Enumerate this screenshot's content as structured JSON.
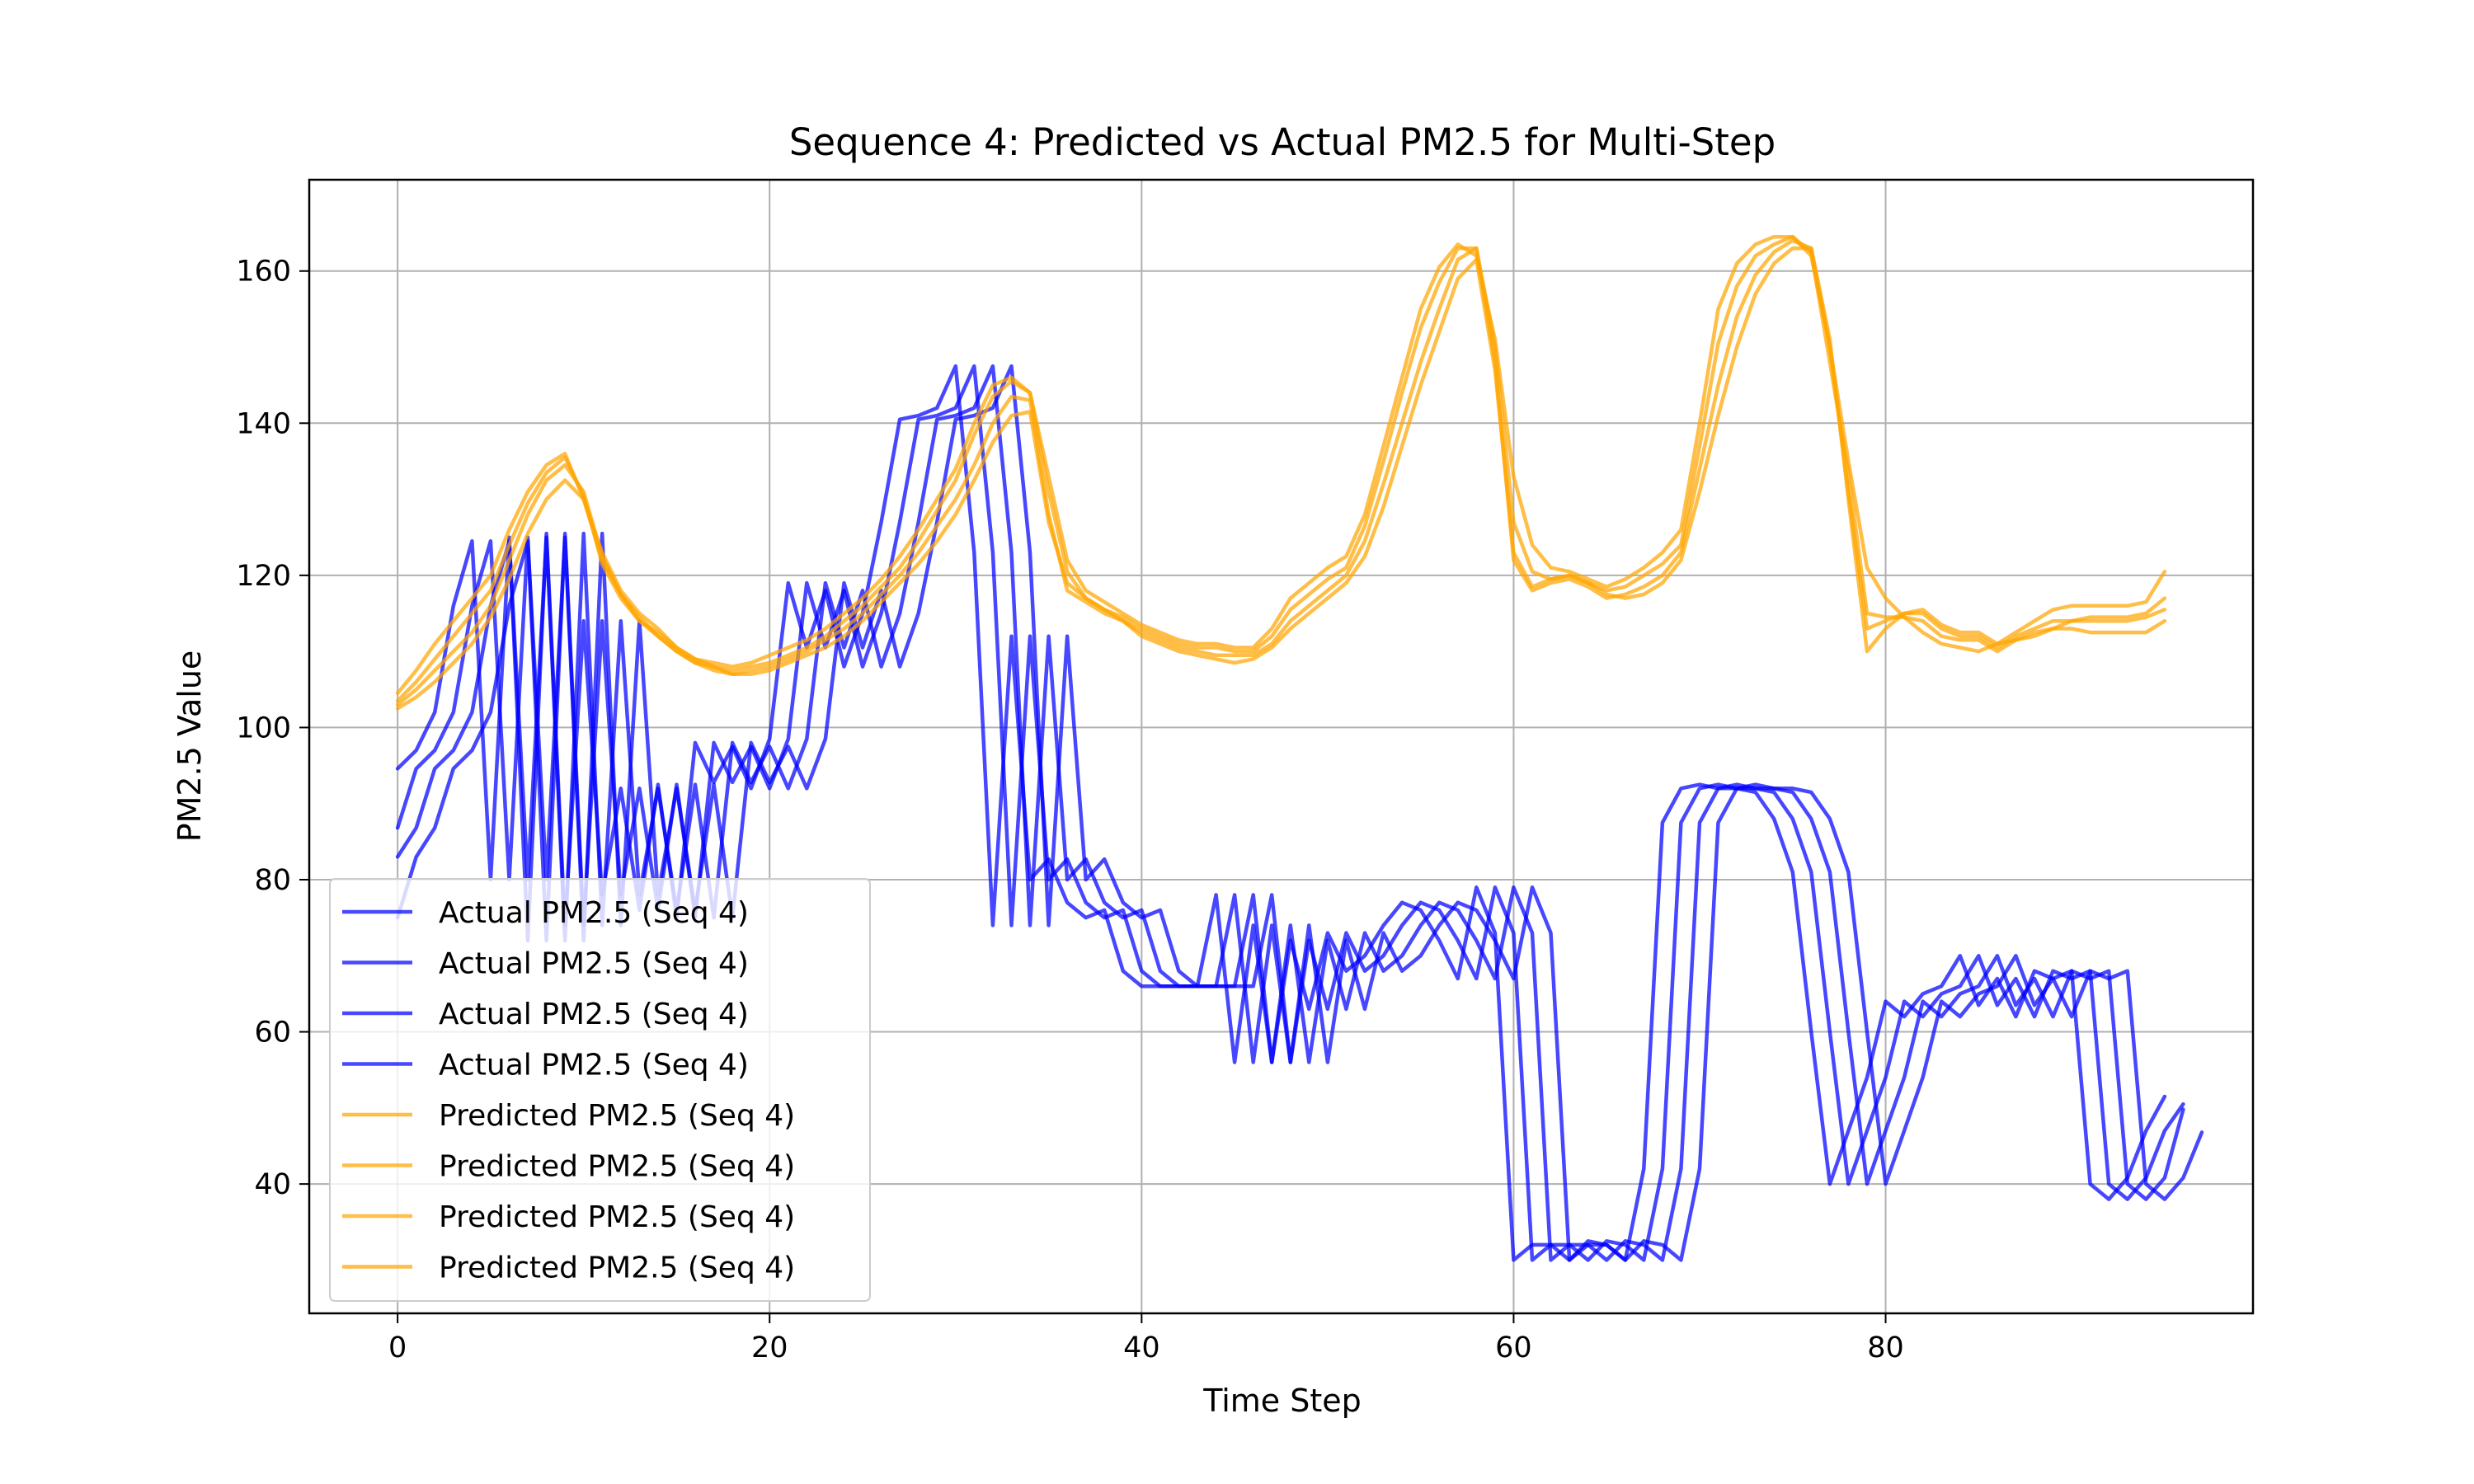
{
  "chart_data": {
    "type": "line",
    "title": "Sequence 4: Predicted vs Actual PM2.5 for Multi-Step",
    "xlabel": "Time Step",
    "ylabel": "PM2.5 Value",
    "xlim": [
      -4.75,
      99.75
    ],
    "ylim": [
      23,
      172
    ],
    "xticks": [
      0,
      20,
      40,
      60,
      80
    ],
    "yticks": [
      40,
      60,
      80,
      100,
      120,
      140,
      160
    ],
    "grid": true,
    "legend_position": "lower left",
    "colors": {
      "actual": "#0000ff",
      "predicted": "#ffa500"
    },
    "series": [
      {
        "name": "Actual PM2.5 (Seq 4)",
        "kind": "actual",
        "x_start": 0,
        "values": [
          94.6,
          97,
          102,
          116,
          124.5,
          80,
          125,
          72,
          125.5,
          74,
          114,
          78,
          92,
          76,
          92.5,
          75,
          98,
          92.8,
          97.5,
          92,
          98.5,
          119,
          110.5,
          118,
          108,
          115,
          127,
          140.5,
          141,
          142,
          147.5,
          123,
          74,
          112,
          80,
          82.7,
          77,
          75,
          76,
          68,
          66,
          66,
          66,
          66,
          78,
          56,
          74,
          56,
          72,
          63,
          73,
          68,
          70,
          74,
          77,
          76,
          72,
          67,
          79,
          73,
          30,
          32,
          32,
          30,
          32.5,
          32,
          30,
          42,
          87.5,
          92,
          92.5,
          92,
          92,
          91.5,
          88,
          81,
          60,
          40,
          47,
          54,
          64,
          62,
          65,
          66,
          70,
          63.5,
          67,
          62,
          68,
          67,
          68,
          40,
          38,
          40.8,
          47,
          51.5
        ]
      },
      {
        "name": "Actual PM2.5 (Seq 4)",
        "kind": "actual",
        "x_start": 0,
        "values": [
          86.8,
          94.6,
          97,
          102,
          116,
          124.5,
          80,
          125,
          72,
          125.5,
          74,
          114,
          78,
          92,
          76,
          92.5,
          75,
          98,
          92.8,
          97.5,
          92,
          98.5,
          119,
          110.5,
          118,
          108,
          115,
          127,
          140.5,
          141,
          142,
          147.5,
          123,
          74,
          112,
          80,
          82.7,
          77,
          75,
          76,
          68,
          66,
          66,
          66,
          66,
          78,
          56,
          74,
          56,
          72,
          63,
          73,
          68,
          70,
          74,
          77,
          76,
          72,
          67,
          79,
          73,
          30,
          32,
          32,
          30,
          32.5,
          32,
          30,
          42,
          87.5,
          92,
          92.5,
          92,
          92,
          91.5,
          88,
          81,
          60,
          40,
          47,
          54,
          64,
          62,
          65,
          66,
          70,
          63.5,
          67,
          62,
          68,
          67,
          68,
          40,
          38,
          40.8,
          47,
          50.5
        ]
      },
      {
        "name": "Actual PM2.5 (Seq 4)",
        "kind": "actual",
        "x_start": 0,
        "values": [
          83,
          86.8,
          94.6,
          97,
          102,
          116,
          124.5,
          80,
          125,
          72,
          125.5,
          74,
          114,
          78,
          92,
          76,
          92.5,
          75,
          98,
          92.8,
          97.5,
          92,
          98.5,
          119,
          110.5,
          118,
          108,
          115,
          127,
          140.5,
          141,
          142,
          147.5,
          123,
          74,
          112,
          80,
          82.7,
          77,
          75,
          76,
          68,
          66,
          66,
          66,
          66,
          78,
          56,
          74,
          56,
          72,
          63,
          73,
          68,
          70,
          74,
          77,
          76,
          72,
          67,
          79,
          73,
          30,
          32,
          32,
          30,
          32.5,
          32,
          30,
          42,
          87.5,
          92,
          92.5,
          92,
          92,
          91.5,
          88,
          81,
          60,
          40,
          47,
          54,
          64,
          62,
          65,
          66,
          70,
          63.5,
          67,
          62,
          68,
          67,
          68,
          40,
          38,
          40.8,
          49.8
        ]
      },
      {
        "name": "Actual PM2.5 (Seq 4)",
        "kind": "actual",
        "x_start": 0,
        "values": [
          75,
          83,
          86.8,
          94.6,
          97,
          102,
          116,
          124.5,
          80,
          125,
          72,
          125.5,
          74,
          114,
          78,
          92,
          76,
          92.5,
          75,
          98,
          92.8,
          97.5,
          92,
          98.5,
          119,
          110.5,
          118,
          108,
          115,
          127,
          140.5,
          141,
          142,
          147.5,
          123,
          74,
          112,
          80,
          82.7,
          77,
          75,
          76,
          68,
          66,
          66,
          66,
          66,
          78,
          56,
          74,
          56,
          72,
          63,
          73,
          68,
          70,
          74,
          77,
          76,
          72,
          67,
          79,
          73,
          30,
          32,
          32,
          30,
          32.5,
          32,
          30,
          42,
          87.5,
          92,
          92.5,
          92,
          92,
          91.5,
          88,
          81,
          60,
          40,
          47,
          54,
          64,
          62,
          65,
          66,
          70,
          63.5,
          67,
          62,
          68,
          67,
          68,
          40,
          38,
          40.8,
          46.8
        ]
      },
      {
        "name": "Predicted PM2.5 (Seq 4)",
        "kind": "predicted",
        "x_start": 0,
        "values": [
          104.5,
          107.5,
          111,
          114,
          117,
          120,
          126,
          131,
          134.5,
          136,
          130,
          122,
          117.5,
          114,
          112.5,
          110.5,
          109,
          108.5,
          108,
          108.5,
          109.5,
          110.5,
          111.5,
          113,
          115,
          117,
          119.5,
          122.5,
          126,
          130,
          134,
          140,
          145,
          146,
          144,
          133,
          122,
          118,
          116.5,
          115,
          113.5,
          112.5,
          111.5,
          111,
          111,
          110.5,
          110.5,
          113,
          117,
          119,
          121,
          122.5,
          128,
          137,
          146,
          155,
          160.5,
          163.5,
          162,
          151,
          133,
          124,
          121,
          120.5,
          119.5,
          118.5,
          119.5,
          121,
          123,
          126,
          140,
          155,
          161,
          163.5,
          164.5,
          164.5,
          162,
          150,
          135,
          121,
          117,
          114.5,
          112.5,
          111,
          110.5,
          110,
          111,
          111.5,
          112,
          113,
          114,
          114.5,
          114.5,
          114.5,
          115,
          117
        ]
      },
      {
        "name": "Predicted PM2.5 (Seq 4)",
        "kind": "predicted",
        "x_start": 0,
        "values": [
          103.5,
          106,
          109,
          112,
          115,
          118,
          124,
          129.5,
          133.5,
          135.5,
          130.5,
          121.5,
          117,
          114,
          112,
          110,
          108.5,
          108,
          107.5,
          108,
          108.5,
          109.5,
          110.5,
          112,
          114,
          116,
          118.5,
          121,
          124.5,
          128.5,
          132.5,
          138.5,
          143.5,
          145.5,
          144,
          131,
          120.5,
          117,
          115.5,
          114.5,
          113,
          112,
          111,
          110.5,
          110.5,
          110,
          110,
          112,
          115.5,
          117.5,
          119.5,
          121,
          126.5,
          135,
          144,
          152.5,
          158.5,
          163,
          163,
          150,
          127,
          120.5,
          119.5,
          120,
          119,
          118,
          118.5,
          120,
          121.5,
          124,
          137,
          150.5,
          158,
          162,
          163.5,
          164.5,
          162.5,
          148,
          133.5,
          115,
          114.5,
          114.5,
          114,
          112,
          111.5,
          111.5,
          110,
          111.5,
          112.5,
          113,
          113,
          112.5,
          112.5,
          112.5,
          112.5,
          114
        ]
      },
      {
        "name": "Predicted PM2.5 (Seq 4)",
        "kind": "predicted",
        "x_start": 0,
        "values": [
          103,
          105,
          107.5,
          110,
          112.5,
          116,
          122,
          128,
          132.5,
          134.5,
          131,
          122.5,
          117.5,
          114.5,
          112,
          110,
          108.5,
          107.5,
          107,
          107.5,
          108,
          109,
          110,
          111.5,
          113,
          115,
          117.5,
          120,
          123,
          126.5,
          130,
          134.5,
          140,
          143.5,
          143,
          128,
          118,
          116.5,
          115,
          114,
          112.5,
          111.5,
          110.5,
          110,
          109.5,
          109.5,
          109.5,
          111,
          114,
          116,
          118,
          120,
          124.5,
          132,
          140,
          148,
          155,
          161.5,
          163,
          148,
          122,
          118,
          119,
          119.5,
          118.5,
          117,
          117.5,
          118.5,
          120,
          123,
          134,
          145,
          154,
          159.5,
          162.5,
          164,
          163,
          150,
          131,
          113,
          114,
          115,
          115,
          113,
          112,
          112,
          110.5,
          112,
          113,
          114,
          114,
          114,
          114,
          114,
          114.5,
          115.5
        ]
      },
      {
        "name": "Predicted PM2.5 (Seq 4)",
        "kind": "predicted",
        "x_start": 0,
        "values": [
          102.5,
          104,
          106,
          108.5,
          111,
          114.5,
          119.5,
          125.5,
          130,
          132.5,
          130,
          123,
          118,
          115,
          113,
          110.5,
          109,
          108,
          107,
          107,
          107.5,
          108.5,
          109.5,
          110.5,
          112,
          114,
          116.5,
          119,
          121.5,
          124.5,
          128,
          132.5,
          137.5,
          141,
          141.5,
          127,
          119,
          117,
          115.5,
          114,
          112,
          111,
          110,
          109.5,
          109,
          108.5,
          109,
          110.5,
          113,
          115,
          117,
          119,
          122.5,
          129,
          137,
          145,
          152,
          159,
          161.5,
          147,
          123,
          118.5,
          119.5,
          120,
          119,
          117.5,
          117,
          117.5,
          119,
          122,
          131,
          141,
          150,
          157,
          161,
          163,
          163,
          151,
          130,
          110,
          113,
          115,
          115.5,
          113.5,
          112.5,
          112.5,
          111,
          112.5,
          114,
          115.5,
          116,
          116,
          116,
          116,
          116.5,
          120.5
        ]
      }
    ]
  }
}
